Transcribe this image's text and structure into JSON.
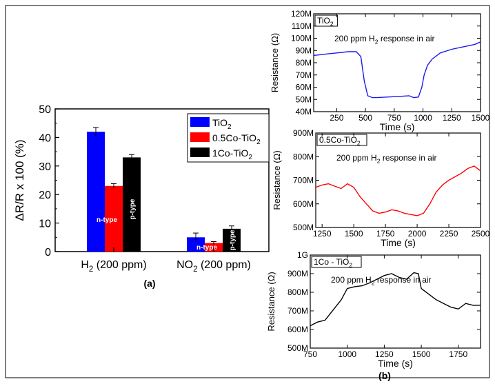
{
  "figure_label_a": "(a)",
  "figure_label_b": "(b)",
  "chart_data": [
    {
      "type": "bar",
      "panel": "a",
      "ylabel": "ΔR/R x 100 (%)",
      "ylim": [
        0,
        50
      ],
      "yticks": [
        "0",
        "10",
        "20",
        "30",
        "40",
        "50"
      ],
      "categories": [
        "H2 (200 ppm)",
        "NO2 (200 ppm)"
      ],
      "series": [
        {
          "name": "TiO2",
          "color": "#0000ff",
          "values": [
            42,
            5
          ],
          "errors": [
            1.5,
            1.5
          ]
        },
        {
          "name": "0.5Co-TiO2",
          "color": "#ff0000",
          "values": [
            23,
            3
          ],
          "errors": [
            0.8,
            0.5
          ]
        },
        {
          "name": "1Co-TiO2",
          "color": "#000000",
          "values": [
            33,
            8
          ],
          "errors": [
            1.0,
            1.0
          ]
        }
      ],
      "annotations": [
        {
          "text": "n-type",
          "category": 0,
          "series": 1
        },
        {
          "text": "p-type",
          "category": 0,
          "series": 2
        },
        {
          "text": "n-type",
          "category": 1,
          "series": 1
        },
        {
          "text": "p-type",
          "category": 1,
          "series": 2
        }
      ],
      "legend_position": "top-right",
      "xlabel": ""
    },
    {
      "type": "line",
      "panel": "b-top",
      "label": "TiO2",
      "annotation": "200 ppm H2 response in air",
      "color": "#1a1aee",
      "xlabel": "Time (s)",
      "ylabel": "Resistance (Ω)",
      "xlim": [
        50,
        1500
      ],
      "ylim": [
        40,
        120
      ],
      "xticks": [
        250,
        500,
        750,
        1000,
        1250,
        1500
      ],
      "yticks": [
        "40M",
        "50M",
        "60M",
        "70M",
        "80M",
        "90M",
        "100M",
        "110M",
        "120M"
      ],
      "x": [
        50,
        150,
        250,
        350,
        420,
        460,
        490,
        520,
        560,
        600,
        700,
        800,
        880,
        920,
        960,
        990,
        1010,
        1040,
        1080,
        1150,
        1250,
        1350,
        1450,
        1500
      ],
      "y": [
        86,
        87,
        88,
        89,
        89,
        85,
        65,
        53,
        51.5,
        51.5,
        52,
        52.5,
        53,
        51.5,
        52,
        60,
        70,
        78,
        83,
        88,
        91,
        93,
        95,
        97
      ]
    },
    {
      "type": "line",
      "panel": "b-middle",
      "label": "0.5Co-TiO2",
      "annotation": "200 ppm H2 response in air",
      "color": "#ff0000",
      "xlabel": "Time (s)",
      "ylabel": "Resistance (Ω)",
      "xlim": [
        1200,
        2500
      ],
      "ylim": [
        500,
        900
      ],
      "xticks": [
        1250,
        1500,
        1750,
        2000,
        2250,
        2500
      ],
      "yticks": [
        "500M",
        "600M",
        "700M",
        "800M",
        "900M"
      ],
      "x": [
        1200,
        1250,
        1300,
        1350,
        1400,
        1450,
        1500,
        1550,
        1600,
        1650,
        1700,
        1750,
        1800,
        1850,
        1900,
        1950,
        2000,
        2050,
        2100,
        2150,
        2200,
        2250,
        2300,
        2350,
        2400,
        2450,
        2500
      ],
      "y": [
        670,
        680,
        685,
        675,
        665,
        685,
        670,
        630,
        600,
        570,
        560,
        565,
        575,
        570,
        560,
        555,
        550,
        560,
        600,
        650,
        680,
        700,
        715,
        730,
        750,
        760,
        740
      ]
    },
    {
      "type": "line",
      "panel": "b-bottom",
      "label": "1Co - TiO2",
      "annotation": "200 ppm H2 response in air",
      "color": "#000000",
      "xlabel": "Time (s)",
      "ylabel": "Resistance (Ω)",
      "xlim": [
        750,
        1900
      ],
      "ylim": [
        500,
        1000
      ],
      "xticks": [
        750,
        1000,
        1250,
        1500,
        1750
      ],
      "yticks": [
        "500M",
        "600M",
        "700M",
        "800M",
        "900M",
        "1G"
      ],
      "x": [
        750,
        800,
        850,
        880,
        920,
        960,
        1000,
        1050,
        1100,
        1150,
        1200,
        1250,
        1300,
        1350,
        1400,
        1450,
        1480,
        1500,
        1550,
        1600,
        1650,
        1700,
        1750,
        1800,
        1850,
        1900
      ],
      "y": [
        620,
        640,
        650,
        680,
        720,
        760,
        820,
        830,
        835,
        850,
        870,
        890,
        900,
        880,
        870,
        905,
        900,
        820,
        790,
        760,
        740,
        720,
        710,
        740,
        730,
        730
      ]
    }
  ]
}
